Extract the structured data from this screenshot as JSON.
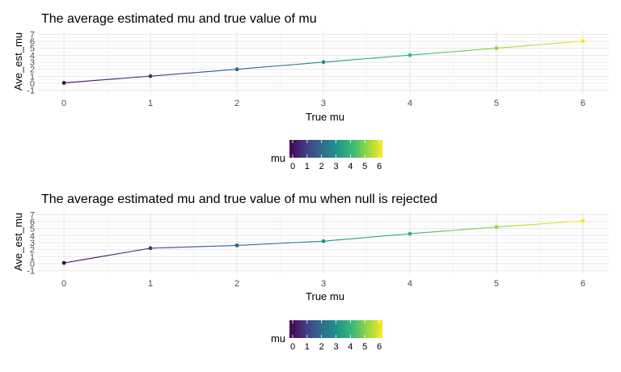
{
  "chart_data": [
    {
      "type": "line",
      "title": "The average estimated mu and true value of mu",
      "xlabel": "True mu",
      "ylabel": "Ave_est_mu",
      "x": [
        0,
        1,
        2,
        3,
        4,
        5,
        6
      ],
      "y": [
        0.06,
        1.02,
        2.0,
        3.02,
        4.02,
        5.01,
        6.02
      ],
      "xlim": [
        -0.3,
        6.3
      ],
      "ylim": [
        -1.5,
        7.5
      ],
      "x_ticks": [
        "0",
        "1",
        "2",
        "3",
        "4",
        "5",
        "6"
      ],
      "y_ticks": [
        "-1",
        "0",
        "1",
        "2",
        "3",
        "4",
        "5",
        "6",
        "7"
      ],
      "grid": true,
      "legend": {
        "title": "mu",
        "type": "colorbar",
        "position": "bottom",
        "ticks": [
          "0",
          "1",
          "2",
          "3",
          "4",
          "5",
          "6"
        ],
        "colors": [
          "#440154",
          "#443983",
          "#31688e",
          "#21918c",
          "#35b779",
          "#90d743",
          "#fde725"
        ]
      }
    },
    {
      "type": "line",
      "title": "The average estimated mu and true value of mu when null is rejected",
      "xlabel": "True mu",
      "ylabel": "Ave_est_mu",
      "x": [
        0,
        1,
        2,
        3,
        4,
        5,
        6
      ],
      "y": [
        0.1,
        2.2,
        2.6,
        3.2,
        4.27,
        5.22,
        6.1
      ],
      "xlim": [
        -0.3,
        6.3
      ],
      "ylim": [
        -1.5,
        7.5
      ],
      "x_ticks": [
        "0",
        "1",
        "2",
        "3",
        "4",
        "5",
        "6"
      ],
      "y_ticks": [
        "-1",
        "0",
        "1",
        "2",
        "3",
        "4",
        "5",
        "6",
        "7"
      ],
      "grid": true,
      "legend": {
        "title": "mu",
        "type": "colorbar",
        "position": "bottom",
        "ticks": [
          "0",
          "1",
          "2",
          "3",
          "4",
          "5",
          "6"
        ],
        "colors": [
          "#440154",
          "#443983",
          "#31688e",
          "#21918c",
          "#35b779",
          "#90d743",
          "#fde725"
        ]
      }
    }
  ]
}
